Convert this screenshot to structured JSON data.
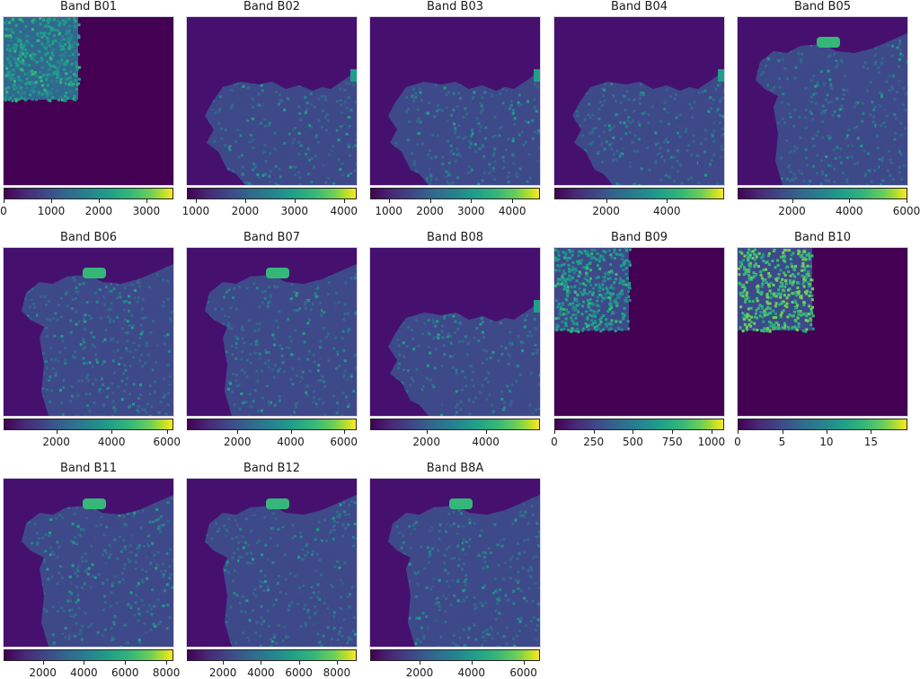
{
  "figure": {
    "background": "#ffffff",
    "colormap": "viridis",
    "colormap_stops": [
      "#440154",
      "#482878",
      "#3e4989",
      "#31688e",
      "#26828e",
      "#1f9e89",
      "#35b779",
      "#6ece58",
      "#b5de2b",
      "#fde725"
    ]
  },
  "panels": [
    {
      "title": "Band B01",
      "vmin": 0,
      "vmax": 3550,
      "ticks": [
        0,
        1000,
        2000,
        3000
      ],
      "tick_labels": [
        "0",
        "1000",
        "2000",
        "3000"
      ],
      "view": "tile"
    },
    {
      "title": "Band B02",
      "vmin": 820,
      "vmax": 4240,
      "ticks": [
        1000,
        2000,
        3000,
        4000
      ],
      "tick_labels": [
        "1000",
        "2000",
        "3000",
        "4000"
      ],
      "view": "north"
    },
    {
      "title": "Band B03",
      "vmin": 550,
      "vmax": 4650,
      "ticks": [
        1000,
        2000,
        3000,
        4000
      ],
      "tick_labels": [
        "1000",
        "2000",
        "3000",
        "4000"
      ],
      "view": "north"
    },
    {
      "title": "Band B04",
      "vmin": 300,
      "vmax": 5850,
      "ticks": [
        2000,
        4000
      ],
      "tick_labels": [
        "2000",
        "4000"
      ],
      "view": "north"
    },
    {
      "title": "Band B05",
      "vmin": 100,
      "vmax": 6000,
      "ticks": [
        2000,
        4000,
        6000
      ],
      "tick_labels": [
        "2000",
        "4000",
        "6000"
      ],
      "view": "full"
    },
    {
      "title": "Band B06",
      "vmin": 100,
      "vmax": 6200,
      "ticks": [
        2000,
        4000,
        6000
      ],
      "tick_labels": [
        "2000",
        "4000",
        "6000"
      ],
      "view": "full"
    },
    {
      "title": "Band B07",
      "vmin": 100,
      "vmax": 6450,
      "ticks": [
        2000,
        4000,
        6000
      ],
      "tick_labels": [
        "2000",
        "4000",
        "6000"
      ],
      "view": "full"
    },
    {
      "title": "Band B08",
      "vmin": 100,
      "vmax": 5800,
      "ticks": [
        2000,
        4000
      ],
      "tick_labels": [
        "2000",
        "4000"
      ],
      "view": "north"
    },
    {
      "title": "Band B09",
      "vmin": 0,
      "vmax": 1075,
      "ticks": [
        0,
        250,
        500,
        750,
        1000
      ],
      "tick_labels": [
        "0",
        "250",
        "500",
        "750",
        "1000"
      ],
      "view": "tile"
    },
    {
      "title": "Band B10",
      "vmin": 0,
      "vmax": 19,
      "ticks": [
        0,
        5,
        10,
        15
      ],
      "tick_labels": [
        "0",
        "5",
        "10",
        "15"
      ],
      "view": "tile"
    },
    {
      "title": "Band B11",
      "vmin": 100,
      "vmax": 8300,
      "ticks": [
        2000,
        4000,
        6000,
        8000
      ],
      "tick_labels": [
        "2000",
        "4000",
        "6000",
        "8000"
      ],
      "view": "full"
    },
    {
      "title": "Band B12",
      "vmin": 100,
      "vmax": 9000,
      "ticks": [
        2000,
        4000,
        6000,
        8000
      ],
      "tick_labels": [
        "2000",
        "4000",
        "6000",
        "8000"
      ],
      "view": "full"
    },
    {
      "title": "Band B8A",
      "vmin": 100,
      "vmax": 6600,
      "ticks": [
        2000,
        4000,
        6000
      ],
      "tick_labels": [
        "2000",
        "4000",
        "6000"
      ],
      "view": "full"
    }
  ],
  "chart_data": {
    "type": "heatmap",
    "title": "",
    "layout": {
      "rows": 3,
      "cols": 5,
      "panel_count": 13
    },
    "series": [
      {
        "name": "Band B01",
        "colorbar_range": [
          0,
          3550
        ],
        "colorbar_ticks": [
          0,
          1000,
          2000,
          3000
        ]
      },
      {
        "name": "Band B02",
        "colorbar_range": [
          820,
          4240
        ],
        "colorbar_ticks": [
          1000,
          2000,
          3000,
          4000
        ]
      },
      {
        "name": "Band B03",
        "colorbar_range": [
          550,
          4650
        ],
        "colorbar_ticks": [
          1000,
          2000,
          3000,
          4000
        ]
      },
      {
        "name": "Band B04",
        "colorbar_range": [
          300,
          5850
        ],
        "colorbar_ticks": [
          2000,
          4000
        ]
      },
      {
        "name": "Band B05",
        "colorbar_range": [
          100,
          6000
        ],
        "colorbar_ticks": [
          2000,
          4000,
          6000
        ]
      },
      {
        "name": "Band B06",
        "colorbar_range": [
          100,
          6200
        ],
        "colorbar_ticks": [
          2000,
          4000,
          6000
        ]
      },
      {
        "name": "Band B07",
        "colorbar_range": [
          100,
          6450
        ],
        "colorbar_ticks": [
          2000,
          4000,
          6000
        ]
      },
      {
        "name": "Band B08",
        "colorbar_range": [
          100,
          5800
        ],
        "colorbar_ticks": [
          2000,
          4000
        ]
      },
      {
        "name": "Band B09",
        "colorbar_range": [
          0,
          1075
        ],
        "colorbar_ticks": [
          0,
          250,
          500,
          750,
          1000
        ]
      },
      {
        "name": "Band B10",
        "colorbar_range": [
          0,
          19
        ],
        "colorbar_ticks": [
          0,
          5,
          10,
          15
        ]
      },
      {
        "name": "Band B11",
        "colorbar_range": [
          100,
          8300
        ],
        "colorbar_ticks": [
          2000,
          4000,
          6000,
          8000
        ]
      },
      {
        "name": "Band B12",
        "colorbar_range": [
          100,
          9000
        ],
        "colorbar_ticks": [
          2000,
          4000,
          6000,
          8000
        ]
      },
      {
        "name": "Band B8A",
        "colorbar_range": [
          100,
          6600
        ],
        "colorbar_ticks": [
          2000,
          4000,
          6000
        ]
      }
    ],
    "colormap": "viridis",
    "colorbar_orientation": "horizontal",
    "grid": false,
    "legend_position": "none"
  }
}
